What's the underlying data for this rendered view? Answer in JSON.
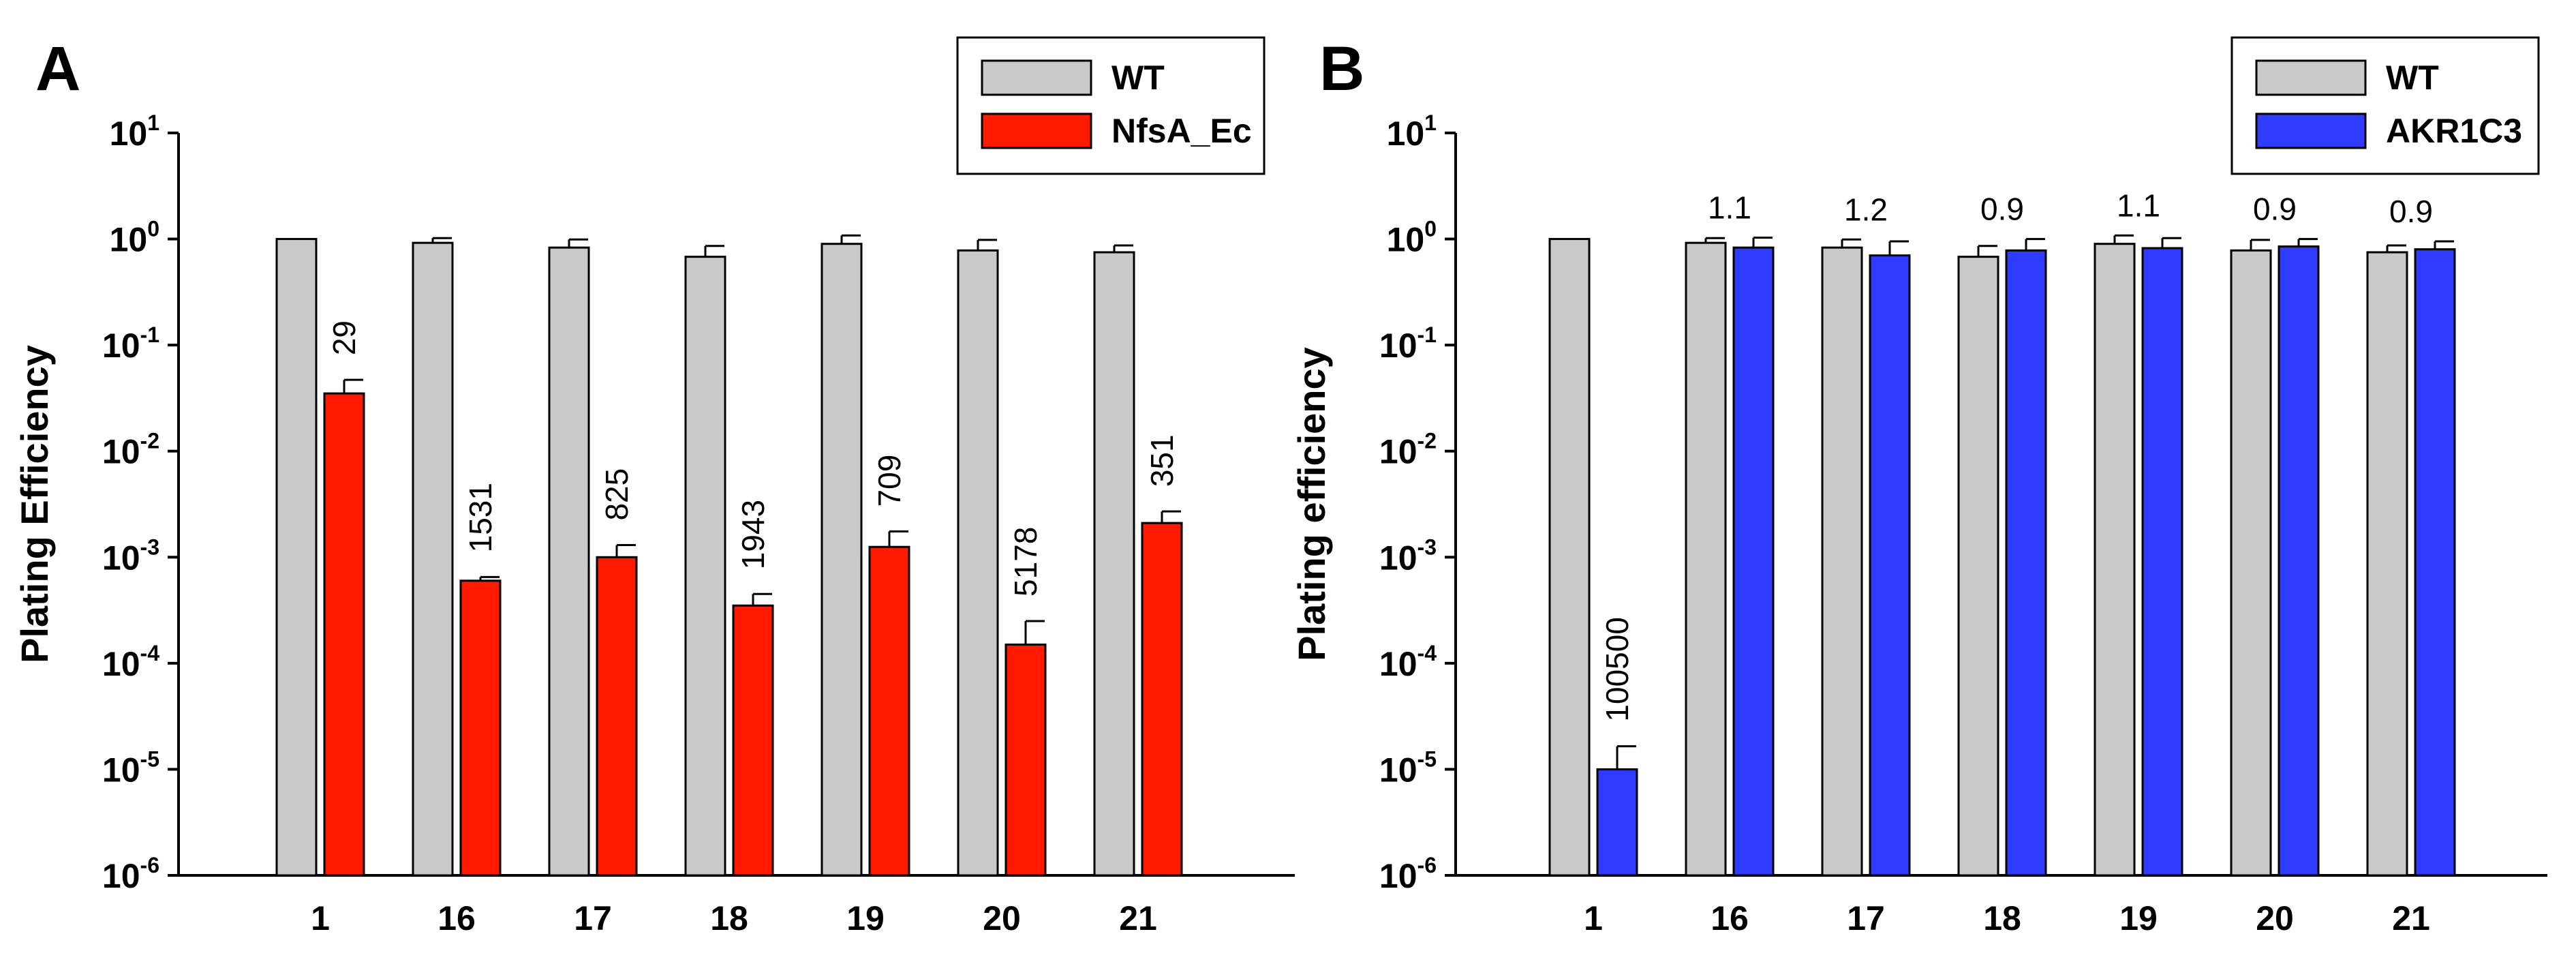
{
  "chart_data": [
    {
      "panel": "A",
      "type": "bar",
      "ylabel": "Plating Efficiency",
      "xlabel": "",
      "yscale": "log",
      "ylim": [
        1e-06,
        10
      ],
      "yticks": [
        {
          "base": "10",
          "exp": "1"
        },
        {
          "base": "10",
          "exp": "0"
        },
        {
          "base": "10",
          "exp": "-1"
        },
        {
          "base": "10",
          "exp": "-2"
        },
        {
          "base": "10",
          "exp": "-3"
        },
        {
          "base": "10",
          "exp": "-4"
        },
        {
          "base": "10",
          "exp": "-5"
        },
        {
          "base": "10",
          "exp": "-6"
        }
      ],
      "categories": [
        "1",
        "16",
        "17",
        "18",
        "19",
        "20",
        "21"
      ],
      "legend_position": "top-right",
      "series": [
        {
          "name": "WT",
          "color": "#c8cac8",
          "values": [
            1.0,
            0.92,
            0.83,
            0.68,
            0.9,
            0.78,
            0.75
          ],
          "errors": [
            0.0,
            0.1,
            0.16,
            0.18,
            0.18,
            0.2,
            0.12
          ]
        },
        {
          "name": "NfsA_Ec",
          "color": "#ff1a00",
          "values": [
            0.035,
            0.0006,
            0.001,
            0.00035,
            0.00125,
            0.00015,
            0.0021
          ],
          "errors": [
            0.012,
            5e-05,
            0.0003,
            0.0001,
            0.0005,
            0.0001,
            0.0006
          ]
        }
      ],
      "annotations": [
        "29",
        "1531",
        "825",
        "1943",
        "709",
        "5178",
        "351"
      ],
      "annotation_orientation": "vertical"
    },
    {
      "panel": "B",
      "type": "bar",
      "ylabel": "Plating efficiency",
      "xlabel": "",
      "yscale": "log",
      "ylim": [
        1e-06,
        10
      ],
      "yticks": [
        {
          "base": "10",
          "exp": "1"
        },
        {
          "base": "10",
          "exp": "0"
        },
        {
          "base": "10",
          "exp": "-1"
        },
        {
          "base": "10",
          "exp": "-2"
        },
        {
          "base": "10",
          "exp": "-3"
        },
        {
          "base": "10",
          "exp": "-4"
        },
        {
          "base": "10",
          "exp": "-5"
        },
        {
          "base": "10",
          "exp": "-6"
        }
      ],
      "categories": [
        "1",
        "16",
        "17",
        "18",
        "19",
        "20",
        "21"
      ],
      "legend_position": "top-right",
      "series": [
        {
          "name": "WT",
          "color": "#c8cac8",
          "values": [
            1.0,
            0.92,
            0.83,
            0.68,
            0.9,
            0.78,
            0.75
          ],
          "errors": [
            0.0,
            0.1,
            0.16,
            0.18,
            0.18,
            0.2,
            0.12
          ]
        },
        {
          "name": "AKR1C3",
          "color": "#2e3cff",
          "values": [
            1e-05,
            0.83,
            0.7,
            0.78,
            0.82,
            0.85,
            0.8
          ],
          "errors": [
            6.5e-06,
            0.2,
            0.25,
            0.22,
            0.2,
            0.15,
            0.15
          ]
        }
      ],
      "annotations": [
        "100500",
        "1.1",
        "1.2",
        "0.9",
        "1.1",
        "0.9",
        "0.9"
      ],
      "annotation_orientation": "first-vertical"
    }
  ]
}
